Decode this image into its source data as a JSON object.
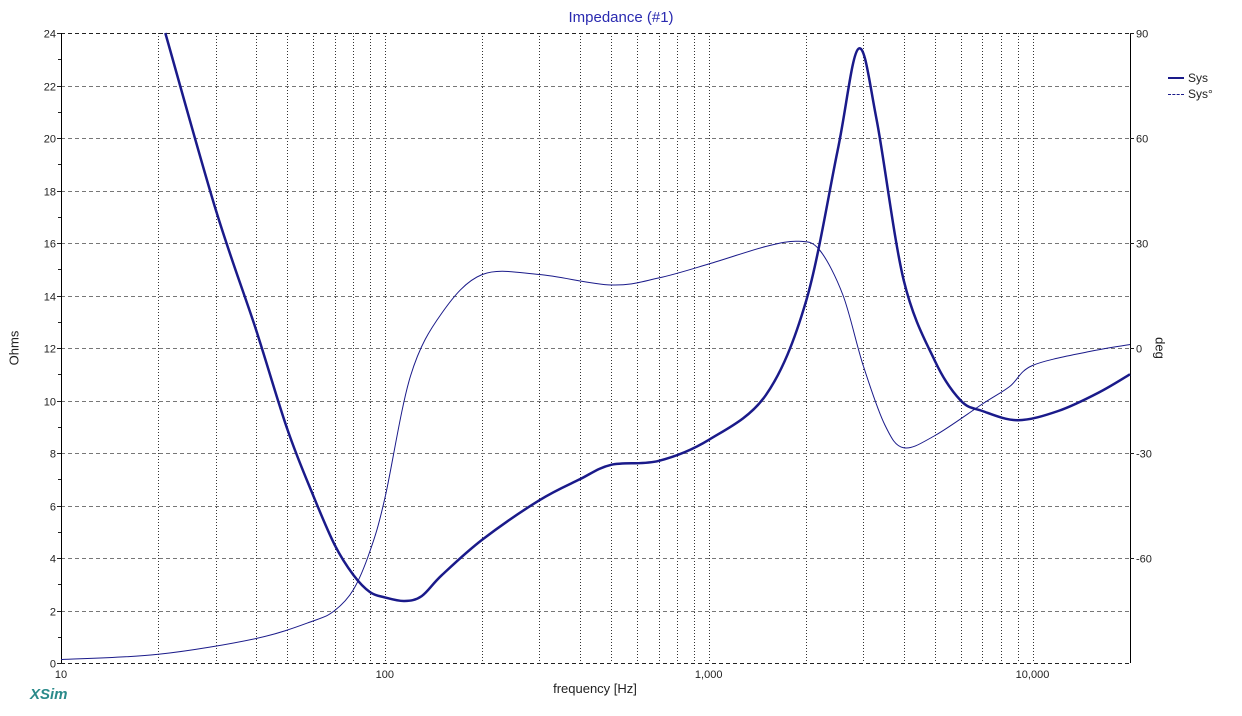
{
  "title": "Impedance (#1)",
  "xlabel": "frequency [Hz]",
  "ylabel": "Ohms",
  "y2label": "deg",
  "brand": "XSim",
  "legend": [
    {
      "label": "Sys",
      "style": "solid"
    },
    {
      "label": "Sys°",
      "style": "dashed"
    }
  ],
  "colors": {
    "curve": "#1a1a8a",
    "title": "#2a2ab0",
    "brand": "#2a8a8a",
    "grid": "#777777"
  },
  "chart_data": {
    "type": "line",
    "title": "Impedance (#1)",
    "xlabel": "frequency [Hz]",
    "ylabel": "Ohms",
    "y2label": "deg",
    "xscale": "log",
    "xlim": [
      10,
      20000
    ],
    "ylim": [
      0,
      24
    ],
    "y2lim": [
      -90,
      90
    ],
    "x_ticks": [
      "10",
      "100",
      "1,000",
      "10,000"
    ],
    "y_ticks": [
      0,
      2,
      4,
      6,
      8,
      10,
      12,
      14,
      16,
      18,
      20,
      22,
      24
    ],
    "y2_ticks": [
      90,
      60,
      30,
      0,
      -30,
      -60
    ],
    "grid": true,
    "legend_position": "right",
    "series": [
      {
        "name": "Sys",
        "axis": "left",
        "unit": "Ohms",
        "x": [
          21,
          30,
          40,
          50,
          60,
          70,
          80,
          90,
          100,
          115,
          130,
          150,
          200,
          300,
          400,
          500,
          700,
          1000,
          1500,
          2000,
          2500,
          2900,
          3300,
          4000,
          5000,
          6000,
          7000,
          9000,
          12000,
          16000,
          20000
        ],
        "values": [
          24,
          17.3,
          12.7,
          8.9,
          6.4,
          4.5,
          3.35,
          2.7,
          2.5,
          2.36,
          2.55,
          3.35,
          4.7,
          6.2,
          7.0,
          7.55,
          7.7,
          8.5,
          10.2,
          13.8,
          19.5,
          23.4,
          20.7,
          14.6,
          11.5,
          10.0,
          9.6,
          9.25,
          9.6,
          10.3,
          11.0
        ]
      },
      {
        "name": "Sys°",
        "axis": "right",
        "unit": "deg",
        "x": [
          10,
          20,
          40,
          60,
          70,
          80,
          90,
          100,
          120,
          150,
          200,
          300,
          500,
          700,
          1000,
          1500,
          1900,
          2200,
          2600,
          3000,
          3500,
          4000,
          5000,
          7000,
          8500,
          10000,
          15000,
          20000
        ],
        "values": [
          -89,
          -87.5,
          -83,
          -78,
          -75,
          -69,
          -58,
          -43,
          -8,
          10,
          21,
          21,
          18,
          20,
          24,
          29,
          30.5,
          28,
          15,
          -5,
          -22,
          -28.5,
          -25,
          -16,
          -11,
          -5,
          -1,
          1
        ]
      }
    ]
  }
}
